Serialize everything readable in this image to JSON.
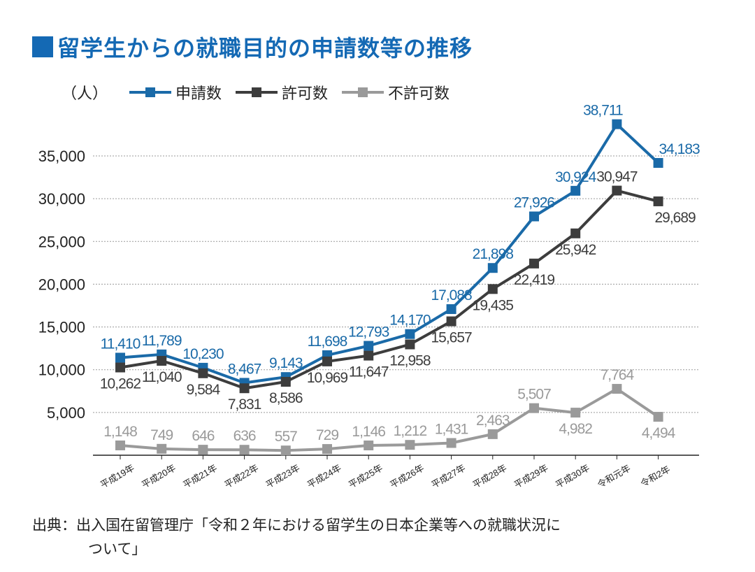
{
  "title": "留学生からの就職目的の申請数等の推移",
  "unit": "（人）",
  "colors": {
    "title": "#1469b4",
    "applications": "#1a6aa8",
    "permitted": "#3d3d3d",
    "denied": "#9a9a9a",
    "grid": "#9a9a9a"
  },
  "source": {
    "line1": "出典：出入国在留管理庁「令和２年における留学生の日本企業等への就職状況に",
    "line2": "ついて」"
  },
  "chart_data": {
    "type": "line",
    "categories": [
      "平成19年",
      "平成20年",
      "平成21年",
      "平成22年",
      "平成23年",
      "平成24年",
      "平成25年",
      "平成26年",
      "平成27年",
      "平成28年",
      "平成29年",
      "平成30年",
      "令和元年",
      "令和2年"
    ],
    "series": [
      {
        "name": "申請数",
        "values": [
          11410,
          11789,
          10230,
          8467,
          9143,
          11698,
          12793,
          14170,
          17088,
          21898,
          27926,
          30924,
          38711,
          34183
        ],
        "labels": [
          "11,410",
          "11,789",
          "10,230",
          "8,467",
          "9,143",
          "11,698",
          "12,793",
          "14,170",
          "17,088",
          "21,898",
          "27,926",
          "30,924",
          "38,711",
          "34,183"
        ]
      },
      {
        "name": "許可数",
        "values": [
          10262,
          11040,
          9584,
          7831,
          8586,
          10969,
          11647,
          12958,
          15657,
          19435,
          22419,
          25942,
          30947,
          29689
        ],
        "labels": [
          "10,262",
          "11,040",
          "9,584",
          "7,831",
          "8,586",
          "10,969",
          "11,647",
          "12,958",
          "15,657",
          "19,435",
          "22,419",
          "25,942",
          "30,947",
          "29,689"
        ]
      },
      {
        "name": "不許可数",
        "values": [
          1148,
          749,
          646,
          636,
          557,
          729,
          1146,
          1212,
          1431,
          2463,
          5507,
          4982,
          7764,
          4494
        ],
        "labels": [
          "1,148",
          "749",
          "646",
          "636",
          "557",
          "729",
          "1,146",
          "1,212",
          "1,431",
          "2,463",
          "5,507",
          "4,982",
          "7,764",
          "4,494"
        ]
      }
    ],
    "yticks": [
      "35,000",
      "30,000",
      "25,000",
      "20,000",
      "15,000",
      "10,000",
      "5,000"
    ],
    "ytick_values": [
      35000,
      30000,
      25000,
      20000,
      15000,
      10000,
      5000
    ],
    "ylim": [
      0,
      38711
    ],
    "grid": true,
    "legend": "top"
  }
}
